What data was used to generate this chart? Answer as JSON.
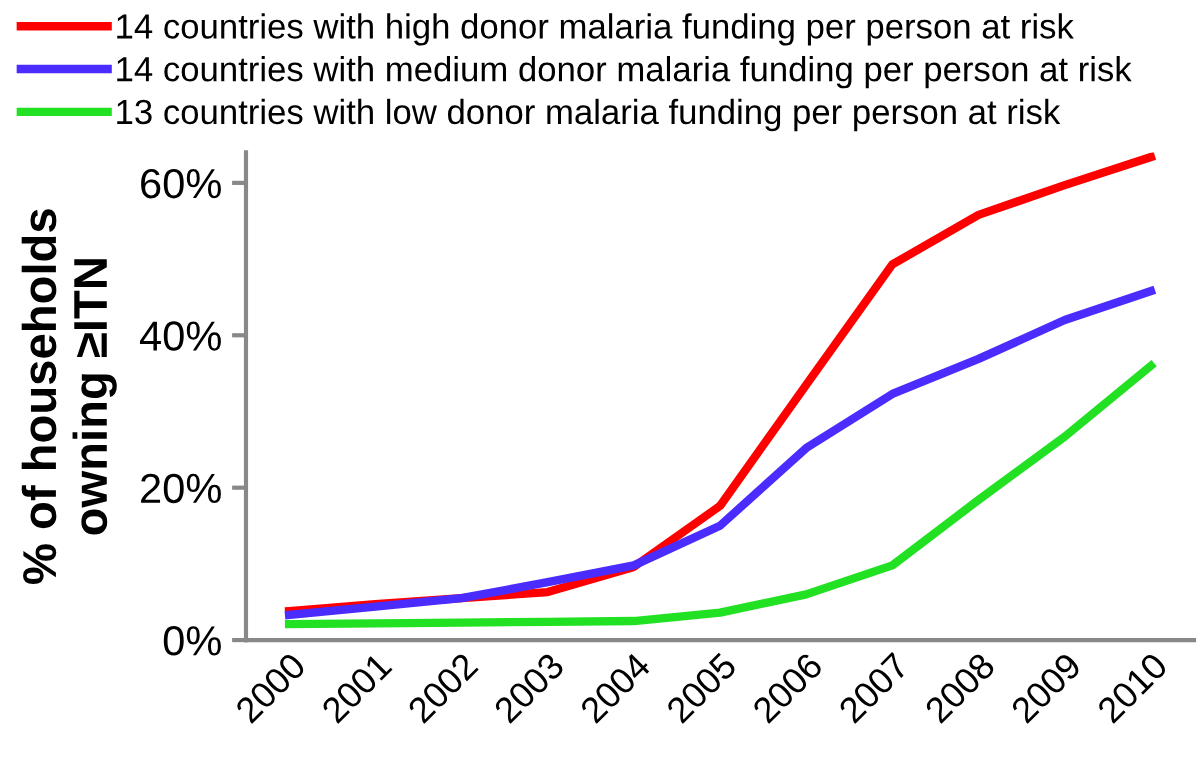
{
  "chart_data": {
    "type": "line",
    "ylabel": "% of households\nowning ≥ITN",
    "x": [
      2000,
      2001,
      2002,
      2003,
      2004,
      2005,
      2006,
      2007,
      2008,
      2009,
      2010
    ],
    "xlim": [
      1999.5,
      2010.5
    ],
    "xticks": [
      2000,
      2001,
      2002,
      2003,
      2004,
      2005,
      2006,
      2007,
      2008,
      2009,
      2010
    ],
    "ylim": [
      0,
      64
    ],
    "yticks": [
      {
        "value": 0,
        "label": "0%"
      },
      {
        "value": 20,
        "label": "20%"
      },
      {
        "value": 40,
        "label": "40%"
      },
      {
        "value": 60,
        "label": "60%"
      }
    ],
    "grid": false,
    "legend": "top",
    "marker": "none",
    "line_style": "solid",
    "series": [
      {
        "name": "14 countries with high donor malaria funding per person at risk",
        "color": "#ff0000",
        "values": [
          3.8,
          4.7,
          5.5,
          6.3,
          9.6,
          17.6,
          33.5,
          49.3,
          55.8,
          59.7,
          63.4
        ]
      },
      {
        "name": "14 countries with medium donor malaria funding per person at risk",
        "color": "#4a2cff",
        "values": [
          3.3,
          4.4,
          5.5,
          7.6,
          9.8,
          15.0,
          25.2,
          32.3,
          36.9,
          42.0,
          45.8
        ]
      },
      {
        "name": "13 countries with low donor malaria funding per person at risk",
        "color": "#22e022",
        "values": [
          2.1,
          2.2,
          2.3,
          2.4,
          2.5,
          3.6,
          6.0,
          9.8,
          18.4,
          26.7,
          36.0
        ]
      }
    ]
  }
}
